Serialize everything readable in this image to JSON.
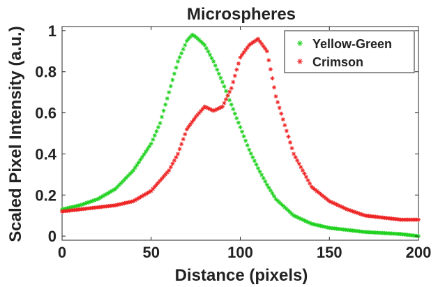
{
  "chart_data": {
    "type": "scatter",
    "title": "Microspheres",
    "xlabel": "Distance (pixels)",
    "ylabel": "Scaled Pixel Intensity (a.u.)",
    "xlim": [
      0,
      200
    ],
    "ylim": [
      -0.02,
      1.02
    ],
    "xticks": [
      "0",
      "50",
      "100",
      "150",
      "200"
    ],
    "yticks": [
      "0",
      "0.2",
      "0.4",
      "0.6",
      "0.8",
      "1"
    ],
    "grid": false,
    "legend_position": "top-right",
    "marker": "asterisk",
    "series": [
      {
        "name": "Yellow-Green",
        "color": "#1fd11f",
        "x": [
          0,
          10,
          20,
          30,
          40,
          50,
          55,
          60,
          65,
          70,
          73,
          75,
          80,
          85,
          90,
          95,
          100,
          105,
          110,
          115,
          120,
          130,
          140,
          150,
          160,
          170,
          180,
          190,
          200
        ],
        "y": [
          0.13,
          0.15,
          0.18,
          0.23,
          0.32,
          0.45,
          0.55,
          0.7,
          0.85,
          0.95,
          0.98,
          0.97,
          0.93,
          0.85,
          0.75,
          0.64,
          0.53,
          0.42,
          0.33,
          0.25,
          0.18,
          0.1,
          0.06,
          0.04,
          0.03,
          0.02,
          0.015,
          0.01,
          0.0
        ]
      },
      {
        "name": "Crimson",
        "color": "#ee2222",
        "x": [
          0,
          10,
          20,
          30,
          40,
          50,
          55,
          60,
          65,
          70,
          75,
          80,
          85,
          90,
          95,
          100,
          105,
          110,
          115,
          120,
          130,
          140,
          150,
          160,
          170,
          180,
          190,
          200
        ],
        "y": [
          0.12,
          0.13,
          0.14,
          0.15,
          0.17,
          0.22,
          0.27,
          0.32,
          0.4,
          0.52,
          0.58,
          0.63,
          0.61,
          0.63,
          0.72,
          0.87,
          0.93,
          0.96,
          0.9,
          0.68,
          0.4,
          0.24,
          0.17,
          0.13,
          0.1,
          0.09,
          0.08,
          0.08
        ]
      }
    ]
  }
}
